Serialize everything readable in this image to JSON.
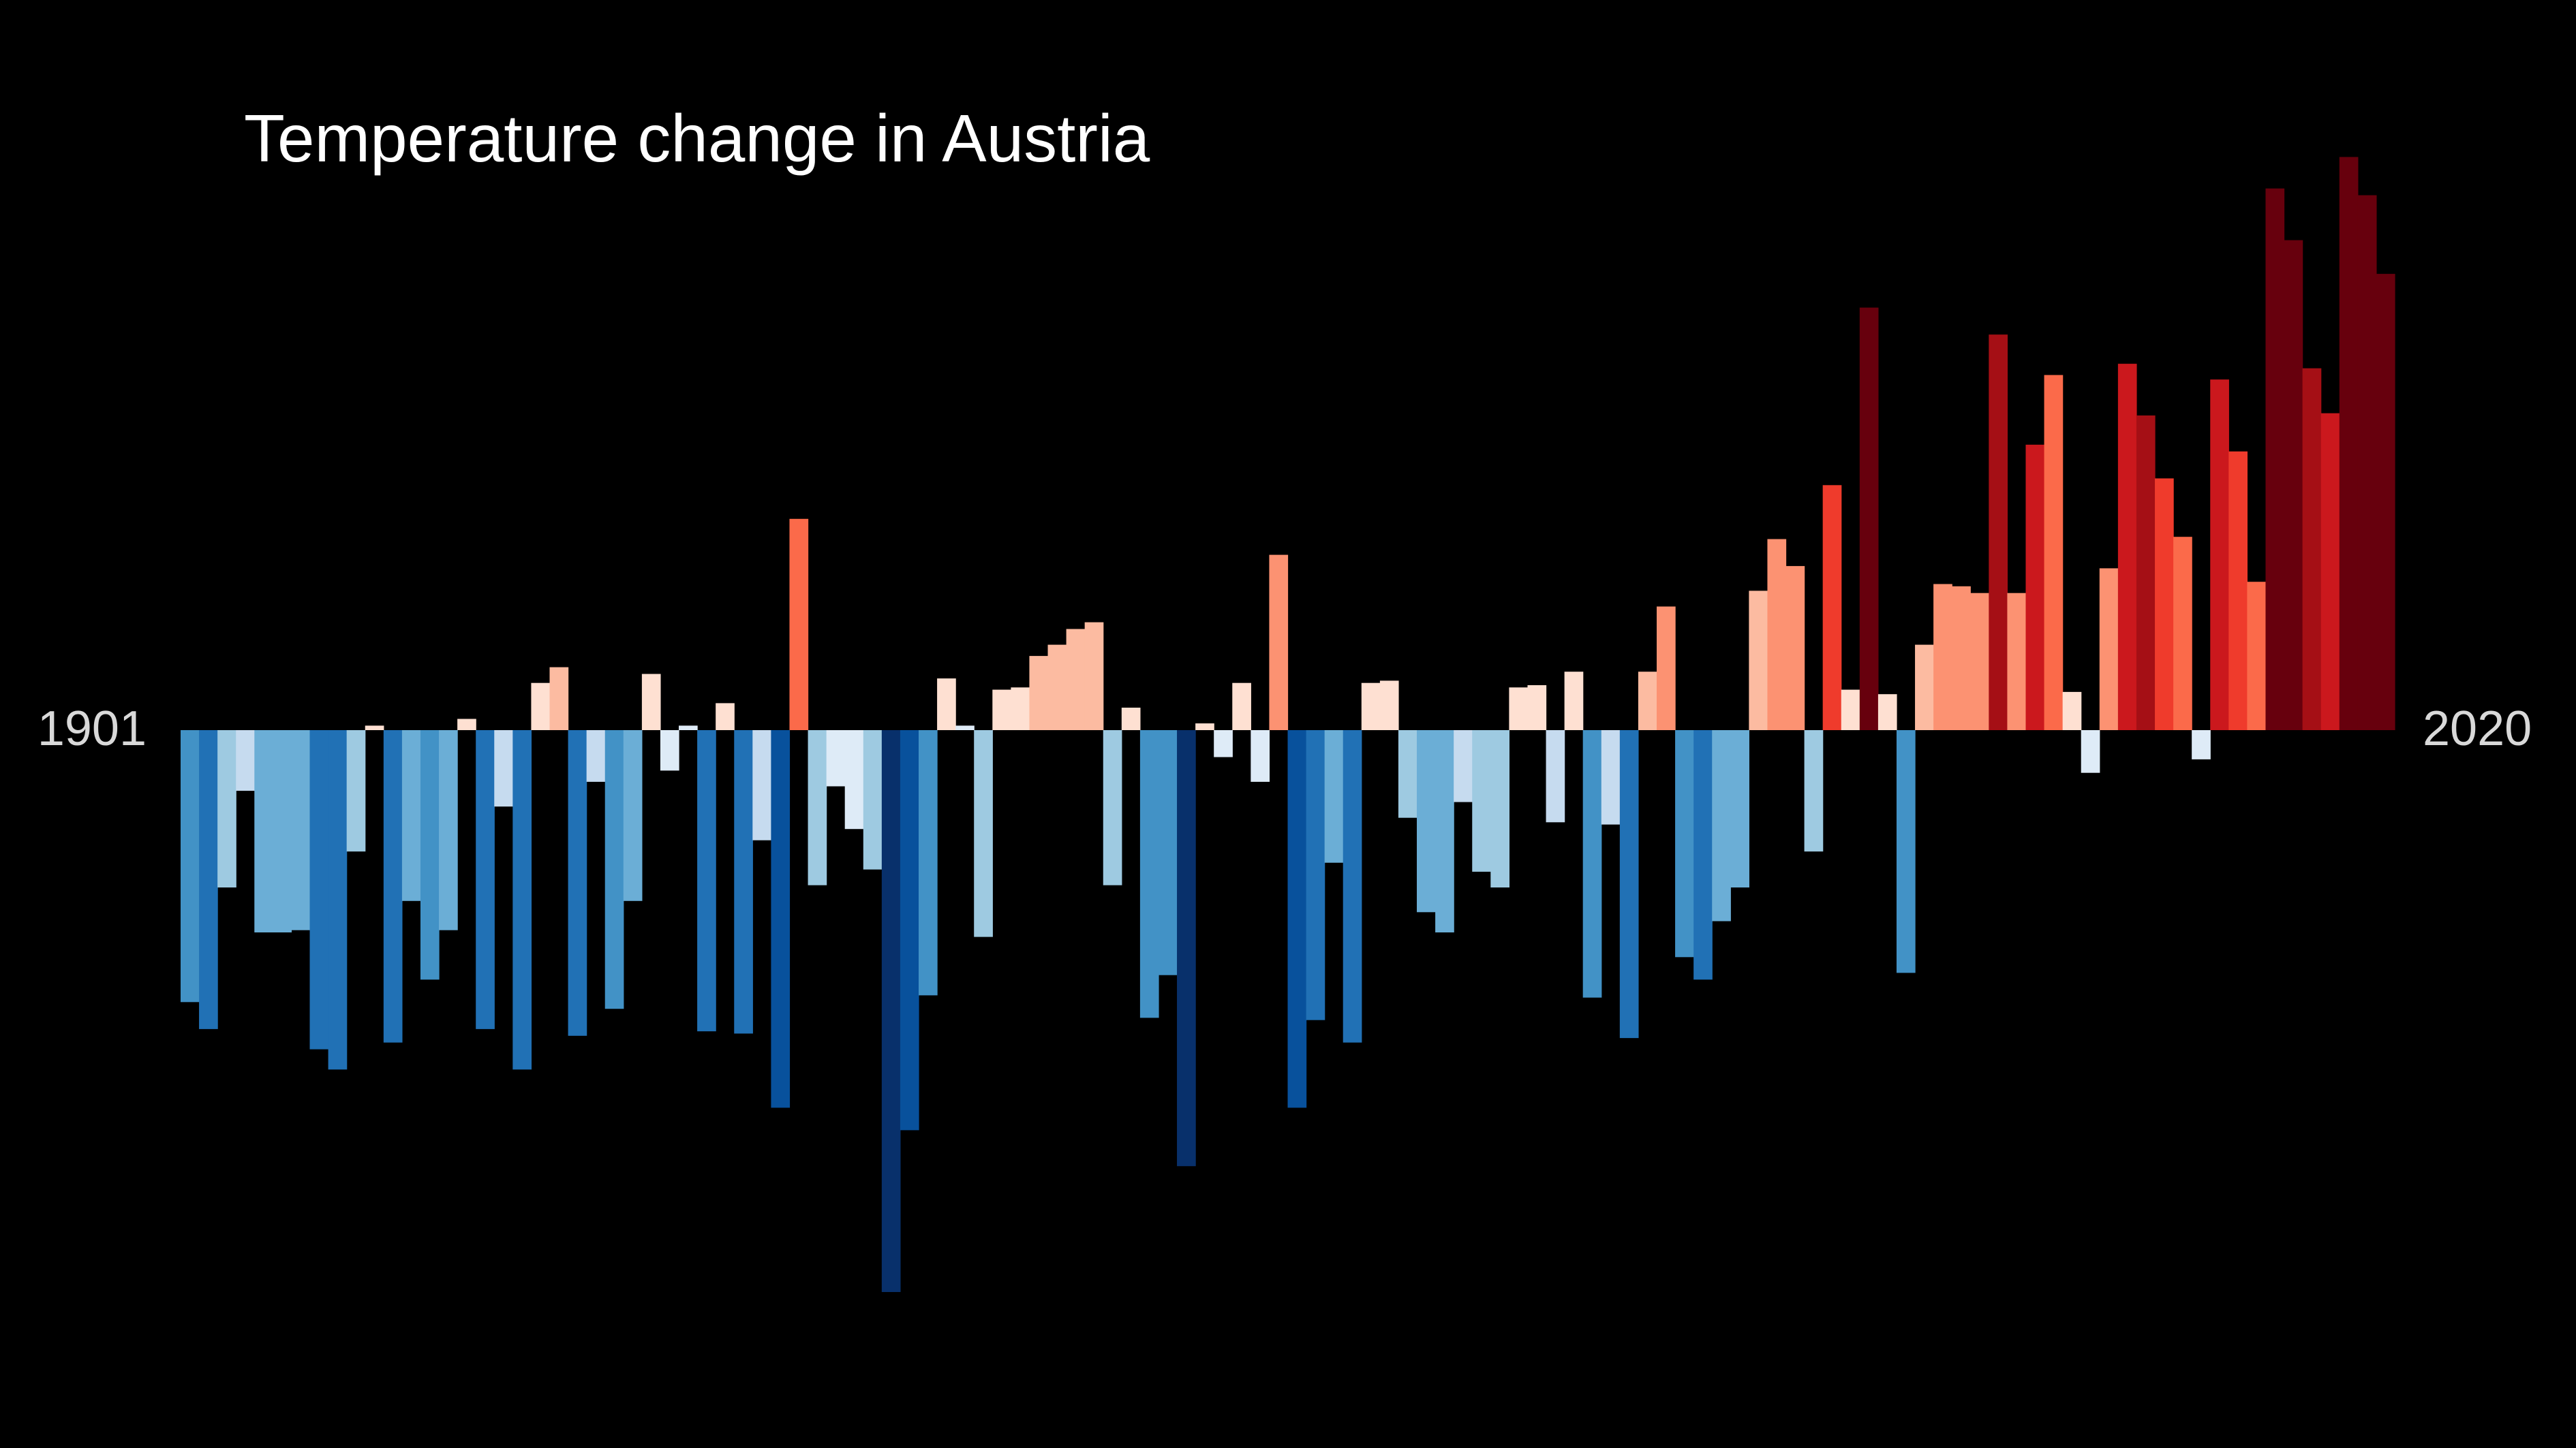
{
  "chart_data": {
    "type": "bar",
    "title": "Temperature change in Austria",
    "xlabel": "",
    "ylabel": "",
    "start_year_label": "1901",
    "end_year_label": "2020",
    "ylim": [
      -2.5,
      2.5
    ],
    "grid": false,
    "legend": "none",
    "years": [
      1901,
      1902,
      1903,
      1904,
      1905,
      1906,
      1907,
      1908,
      1909,
      1910,
      1911,
      1912,
      1913,
      1914,
      1915,
      1916,
      1917,
      1918,
      1919,
      1920,
      1921,
      1922,
      1923,
      1924,
      1925,
      1926,
      1927,
      1928,
      1929,
      1930,
      1931,
      1932,
      1933,
      1934,
      1935,
      1936,
      1937,
      1938,
      1939,
      1940,
      1941,
      1942,
      1943,
      1944,
      1945,
      1946,
      1947,
      1948,
      1949,
      1950,
      1951,
      1952,
      1953,
      1954,
      1955,
      1956,
      1957,
      1958,
      1959,
      1960,
      1961,
      1962,
      1963,
      1964,
      1965,
      1966,
      1967,
      1968,
      1969,
      1970,
      1971,
      1972,
      1973,
      1974,
      1975,
      1976,
      1977,
      1978,
      1979,
      1980,
      1981,
      1982,
      1983,
      1984,
      1985,
      1986,
      1987,
      1988,
      1989,
      1990,
      1991,
      1992,
      1993,
      1994,
      1995,
      1996,
      1997,
      1998,
      1999,
      2000,
      2001,
      2002,
      2003,
      2004,
      2005,
      2006,
      2007,
      2008,
      2009,
      2010,
      2011,
      2012,
      2013,
      2014,
      2015,
      2016,
      2017,
      2018,
      2019,
      2020
    ],
    "values": [
      -1.21,
      -1.33,
      -0.7,
      -0.27,
      -0.9,
      -0.9,
      -0.89,
      -1.42,
      -1.51,
      -0.54,
      0.02,
      -1.39,
      -0.76,
      -1.11,
      -0.89,
      0.05,
      -1.33,
      -0.34,
      -1.51,
      0.21,
      0.28,
      -1.36,
      -0.23,
      -1.24,
      -0.76,
      0.25,
      -0.18,
      0.02,
      -1.34,
      0.12,
      -1.35,
      -0.49,
      -1.68,
      0.94,
      -0.69,
      -0.25,
      -0.44,
      -0.62,
      -2.5,
      -1.78,
      -1.18,
      0.23,
      0.02,
      -0.92,
      0.18,
      0.19,
      0.33,
      0.38,
      0.45,
      0.48,
      -0.69,
      0.1,
      -1.28,
      -1.09,
      -1.94,
      0.03,
      -0.12,
      0.21,
      -0.23,
      0.78,
      -1.68,
      -1.29,
      -0.59,
      -1.39,
      0.21,
      0.22,
      -0.39,
      -0.81,
      -0.9,
      -0.32,
      -0.63,
      -0.7,
      0.19,
      0.2,
      -0.41,
      0.26,
      -1.19,
      -0.42,
      -1.37,
      0.26,
      0.55,
      -1.01,
      -1.11,
      -0.85,
      -0.7,
      0.62,
      0.85,
      0.73,
      -0.54,
      1.09,
      0.18,
      1.88,
      0.16,
      -1.08,
      0.38,
      0.65,
      0.64,
      0.61,
      1.76,
      0.61,
      1.27,
      1.58,
      0.17,
      -0.19,
      0.72,
      1.63,
      1.4,
      1.12,
      0.86,
      -0.13,
      1.56,
      1.24,
      0.66,
      2.41,
      2.18,
      1.61,
      1.41,
      2.55,
      2.38,
      2.03
    ],
    "colors": [
      "#4292c6",
      "#2171b5",
      "#9ecae1",
      "#c6dbef",
      "#6baed6",
      "#6baed6",
      "#6baed6",
      "#2171b5",
      "#2171b5",
      "#9ecae1",
      "#fee0d2",
      "#2171b5",
      "#6baed6",
      "#4292c6",
      "#6baed6",
      "#fee0d2",
      "#2171b5",
      "#c6dbef",
      "#2171b5",
      "#fee0d2",
      "#fcbba1",
      "#2171b5",
      "#c6dbef",
      "#4292c6",
      "#6baed6",
      "#fee0d2",
      "#deebf7",
      "#deebf7",
      "#2171b5",
      "#fee0d2",
      "#2171b5",
      "#c6dbef",
      "#08519c",
      "#fb6a4a",
      "#9ecae1",
      "#deebf7",
      "#deebf7",
      "#9ecae1",
      "#08306b",
      "#08519c",
      "#4292c6",
      "#fee0d2",
      "#deebf7",
      "#9ecae1",
      "#fee0d2",
      "#fee0d2",
      "#fcbba1",
      "#fcbba1",
      "#fcbba1",
      "#fcbba1",
      "#9ecae1",
      "#fee0d2",
      "#4292c6",
      "#4292c6",
      "#08306b",
      "#fee0d2",
      "#deebf7",
      "#fee0d2",
      "#deebf7",
      "#fc9272",
      "#08519c",
      "#2171b5",
      "#6baed6",
      "#2171b5",
      "#fee0d2",
      "#fee0d2",
      "#9ecae1",
      "#6baed6",
      "#6baed6",
      "#c6dbef",
      "#9ecae1",
      "#9ecae1",
      "#fee0d2",
      "#fee0d2",
      "#c6dbef",
      "#fee0d2",
      "#4292c6",
      "#c6dbef",
      "#2171b5",
      "#fcbba1",
      "#fc9272",
      "#4292c6",
      "#2171b5",
      "#6baed6",
      "#6baed6",
      "#fcbba1",
      "#fc9272",
      "#fc9272",
      "#9ecae1",
      "#ef3b2c",
      "#fee0d2",
      "#67000d",
      "#fee0d2",
      "#4292c6",
      "#fcbba1",
      "#fc9272",
      "#fc9272",
      "#fc9272",
      "#a50f15",
      "#fc9272",
      "#cb181d",
      "#fb6a4a",
      "#fee0d2",
      "#deebf7",
      "#fc9272",
      "#cb181d",
      "#a50f15",
      "#ef3b2c",
      "#fb6a4a",
      "#deebf7",
      "#cb181d",
      "#ef3b2c",
      "#fb6a4a",
      "#67000d",
      "#67000d",
      "#a50f15",
      "#cb181d",
      "#67000d",
      "#67000d",
      "#67000d"
    ]
  }
}
